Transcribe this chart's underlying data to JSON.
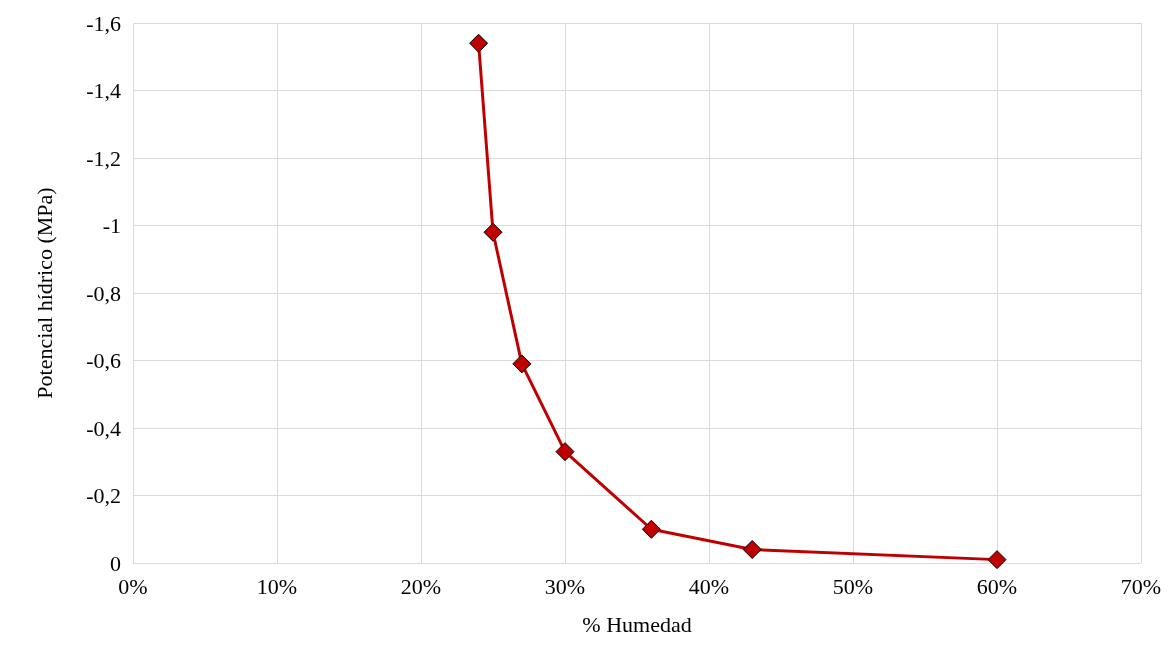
{
  "chart_data": {
    "type": "line",
    "xlabel": "% Humedad",
    "ylabel": "Potencial hídrico (MPa)",
    "x": [
      24,
      25,
      27,
      30,
      36,
      43,
      60
    ],
    "series": [
      {
        "color": "#c00000",
        "values": [
          -1.54,
          -0.98,
          -0.59,
          -0.33,
          -0.1,
          -0.04,
          -0.01
        ]
      }
    ],
    "xlim": [
      0,
      70
    ],
    "xticks": [
      {
        "value": 0,
        "label": "0%"
      },
      {
        "value": 10,
        "label": "10%"
      },
      {
        "value": 20,
        "label": "20%"
      },
      {
        "value": 30,
        "label": "30%"
      },
      {
        "value": 40,
        "label": "40%"
      },
      {
        "value": 50,
        "label": "50%"
      },
      {
        "value": 60,
        "label": "60%"
      },
      {
        "value": 70,
        "label": "70%"
      }
    ],
    "ylim": [
      0,
      -1.6
    ],
    "yticks": [
      0,
      {
        "value": -0.2,
        "label": "-0,2"
      },
      {
        "value": -0.4,
        "label": "-0,4"
      },
      {
        "value": -0.6,
        "label": "-0,6"
      },
      {
        "value": -0.8,
        "label": "-0,8"
      },
      -1,
      {
        "value": -1.2,
        "label": "-1,2"
      },
      {
        "value": -1.4,
        "label": "-1,4"
      },
      {
        "value": -1.6,
        "label": "-1,6"
      }
    ],
    "grid": true,
    "marker": "diamond",
    "line_style": "solid"
  }
}
